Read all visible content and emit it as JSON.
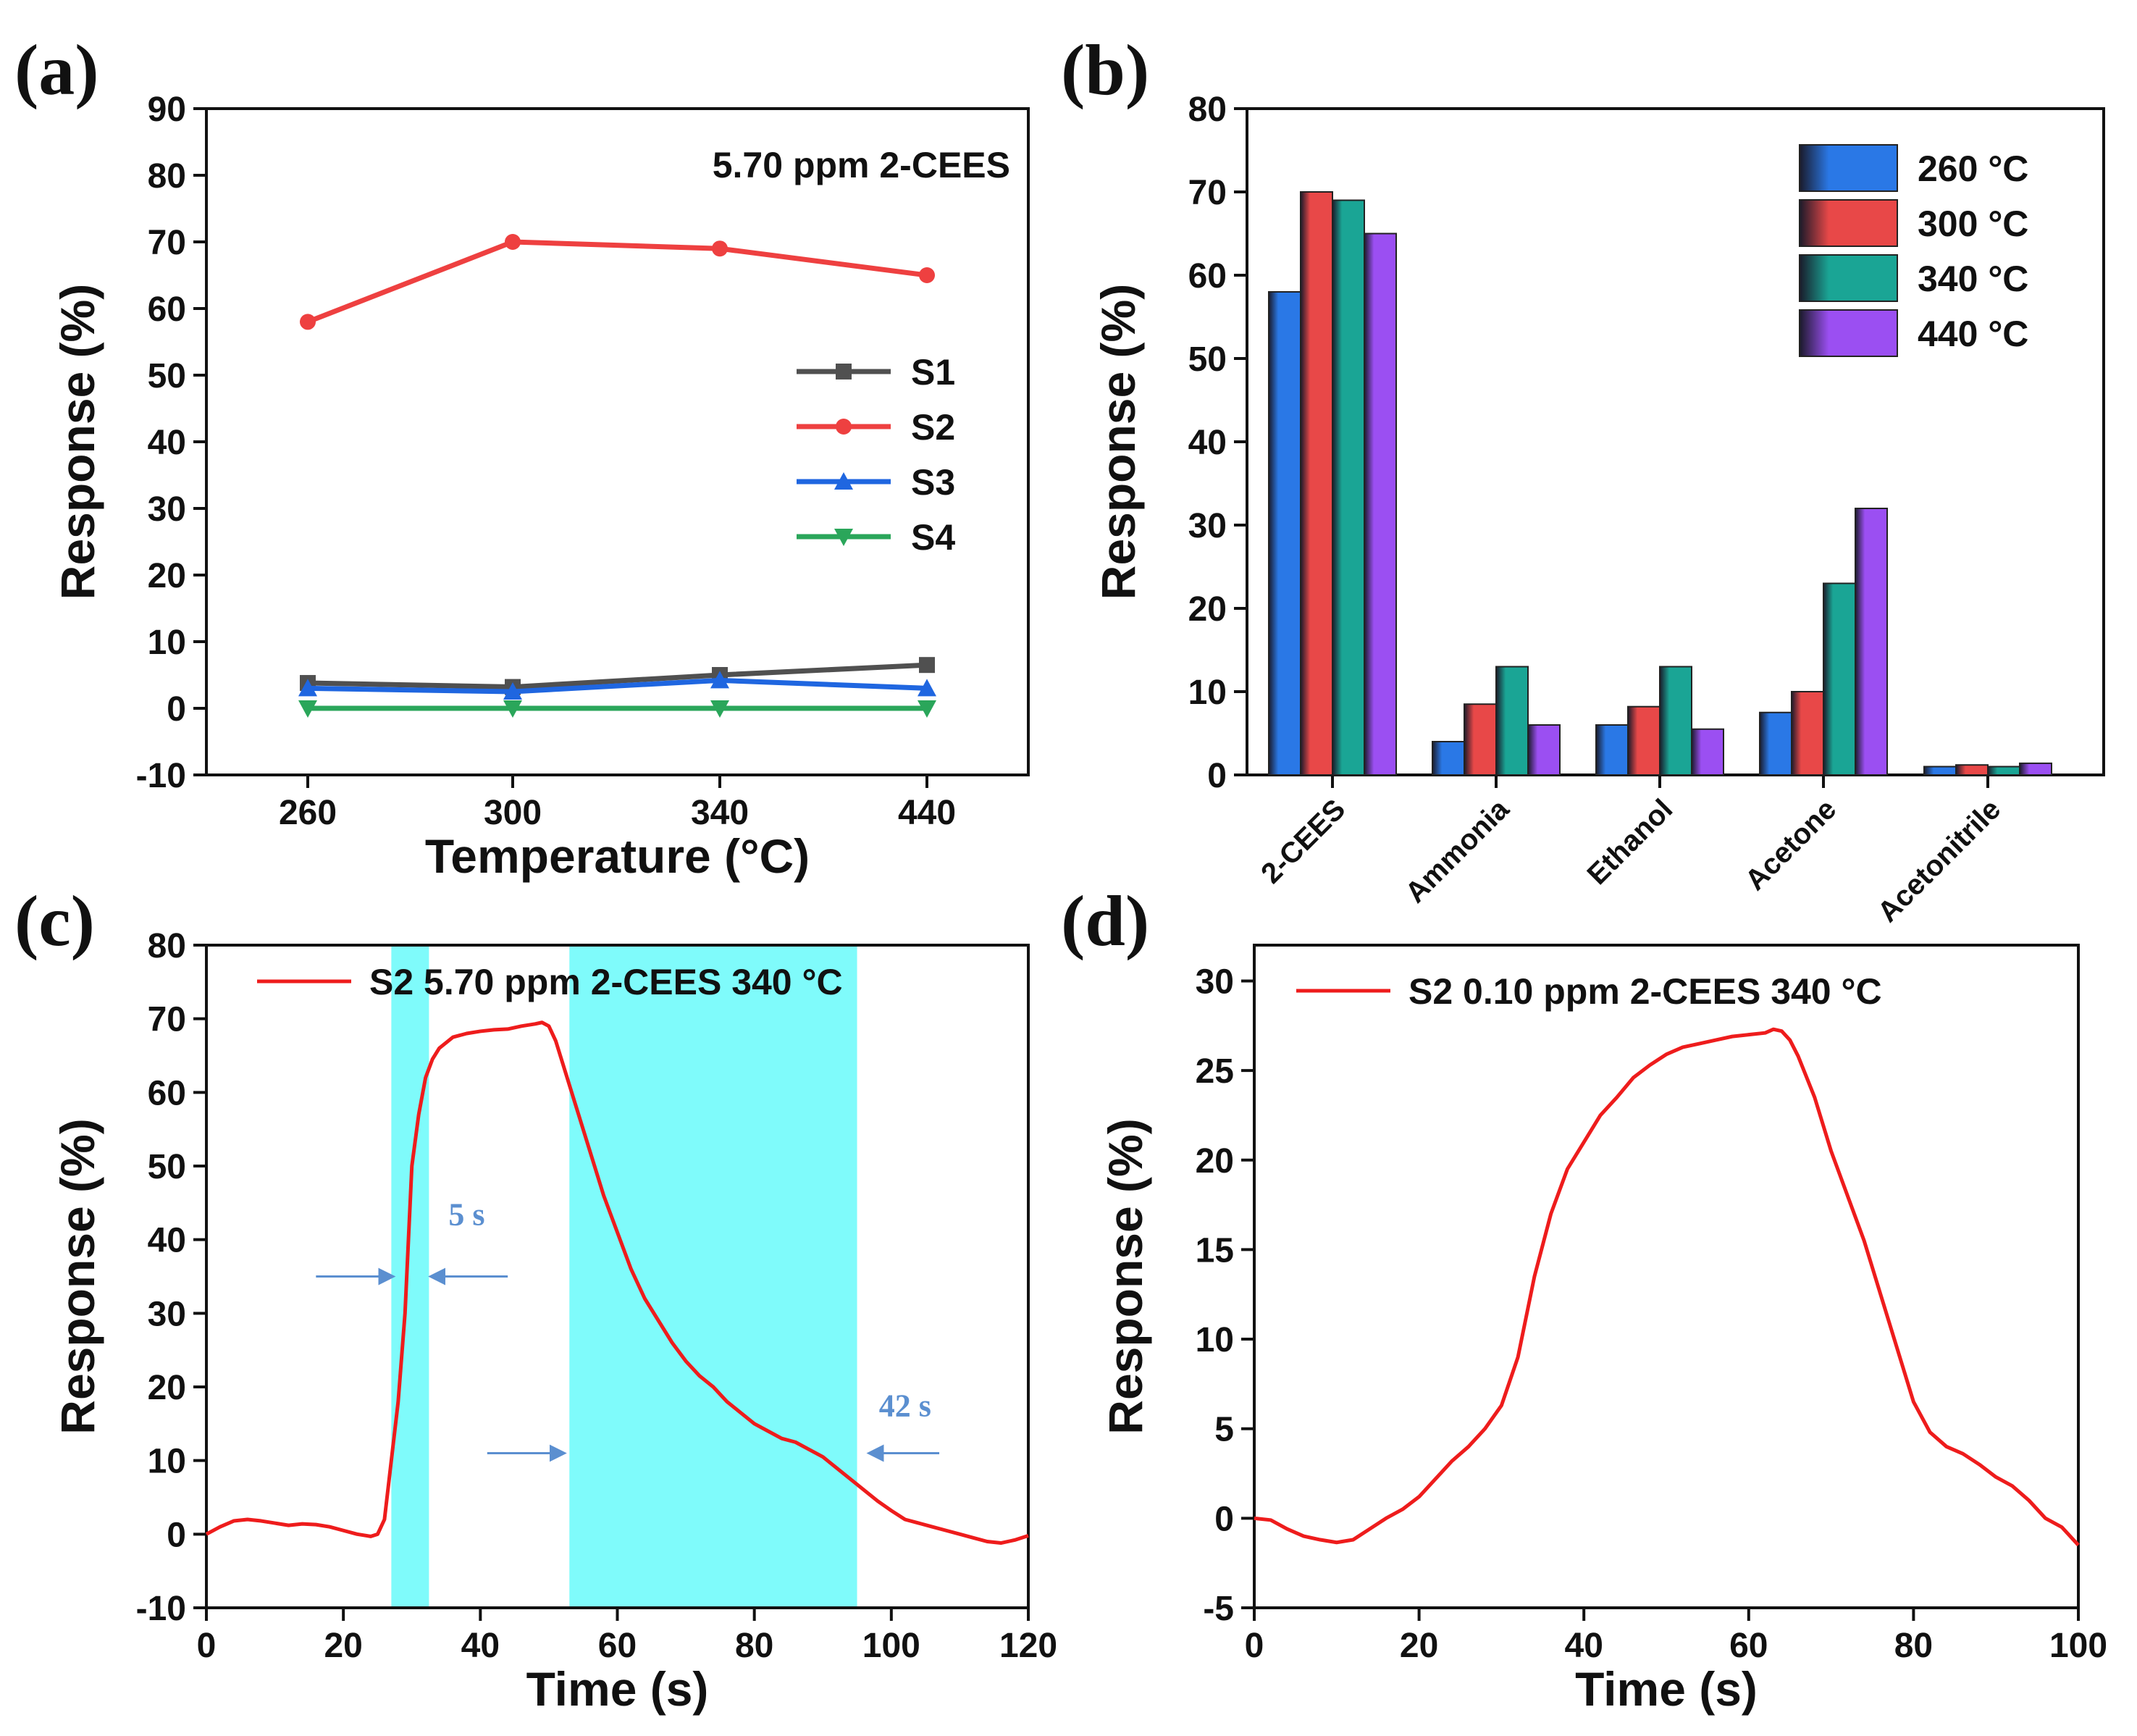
{
  "panels": {
    "a": "(a)",
    "b": "(b)",
    "c": "(c)",
    "d": "(d)"
  },
  "colors": {
    "S1": "#505050",
    "S2": "#ee4040",
    "S3": "#1f66e0",
    "S4": "#2aa65a",
    "c260": "#2a78e6",
    "c300": "#e84848",
    "c340": "#1aa595",
    "c440": "#9b4ff2",
    "shade": "#7ffbfb",
    "curve": "#ee1c1c",
    "arrow": "#5b8fd0"
  },
  "chart_data": [
    {
      "id": "a",
      "type": "line",
      "annotation": "5.70 ppm 2-CEES",
      "xlabel": "Temperature (°C)",
      "ylabel": "Response (%)",
      "categories": [
        "260",
        "300",
        "340",
        "440"
      ],
      "ylim": [
        -10,
        90
      ],
      "yticks": [
        -10,
        0,
        10,
        20,
        30,
        40,
        50,
        60,
        70,
        80,
        90
      ],
      "legend": "center-right",
      "series": [
        {
          "name": "S1",
          "values": [
            3.8,
            3.2,
            5.0,
            6.5
          ],
          "marker": "square"
        },
        {
          "name": "S2",
          "values": [
            58,
            70,
            69,
            65
          ],
          "marker": "circle"
        },
        {
          "name": "S3",
          "values": [
            3.0,
            2.5,
            4.2,
            3.0
          ],
          "marker": "triangle-up"
        },
        {
          "name": "S4",
          "values": [
            0,
            0,
            0,
            0
          ],
          "marker": "triangle-down"
        }
      ]
    },
    {
      "id": "b",
      "type": "bar",
      "xlabel": "",
      "ylabel": "Response (%)",
      "categories": [
        "2-CEES",
        "Ammonia",
        "Ethanol",
        "Acetone",
        "Acetonitrile"
      ],
      "ylim": [
        0,
        80
      ],
      "yticks": [
        0,
        10,
        20,
        30,
        40,
        50,
        60,
        70,
        80
      ],
      "legend": "top-right",
      "series": [
        {
          "name": "260 °C",
          "values": [
            58,
            4,
            6,
            7.5,
            1
          ]
        },
        {
          "name": "300 °C",
          "values": [
            70,
            8.5,
            8.2,
            10,
            1.2
          ]
        },
        {
          "name": "340 °C",
          "values": [
            69,
            13,
            13,
            23,
            1
          ]
        },
        {
          "name": "440 °C",
          "values": [
            65,
            6,
            5.5,
            32,
            1.4
          ]
        }
      ]
    },
    {
      "id": "c",
      "type": "line",
      "legend_label": "S2  5.70 ppm  2-CEES  340 °C",
      "xlabel": "Time (s)",
      "ylabel": "Response (%)",
      "xlim": [
        0,
        120
      ],
      "ylim": [
        -10,
        80
      ],
      "xticks": [
        0,
        20,
        40,
        60,
        80,
        100,
        120
      ],
      "yticks": [
        -10,
        0,
        10,
        20,
        30,
        40,
        50,
        60,
        70,
        80
      ],
      "shaded_regions": [
        [
          27,
          32.5
        ],
        [
          53,
          95
        ]
      ],
      "annotations": [
        {
          "text": "5 s",
          "x": 38,
          "y": 42
        },
        {
          "text": "42 s",
          "x": 102,
          "y": 16
        }
      ],
      "arrows": [
        {
          "from": [
            16,
            35
          ],
          "to": [
            27,
            35
          ]
        },
        {
          "from": [
            44,
            35
          ],
          "to": [
            33,
            35
          ]
        },
        {
          "from": [
            41,
            11
          ],
          "to": [
            52,
            11
          ]
        },
        {
          "from": [
            107,
            11
          ],
          "to": [
            97,
            11
          ]
        }
      ],
      "x": [
        0,
        2,
        4,
        6,
        8,
        10,
        12,
        14,
        16,
        18,
        20,
        22,
        24,
        25,
        26,
        27,
        28,
        29,
        30,
        31,
        32,
        33,
        34,
        36,
        38,
        40,
        42,
        44,
        46,
        48,
        49,
        50,
        51,
        52,
        54,
        56,
        58,
        60,
        62,
        64,
        66,
        68,
        70,
        72,
        74,
        76,
        78,
        80,
        82,
        84,
        86,
        88,
        90,
        92,
        94,
        96,
        98,
        100,
        102,
        104,
        106,
        108,
        110,
        112,
        114,
        116,
        118,
        120
      ],
      "y": [
        0,
        1,
        1.8,
        2,
        1.8,
        1.5,
        1.2,
        1.4,
        1.3,
        1.0,
        0.5,
        0,
        -0.3,
        0,
        2,
        10,
        18,
        30,
        50,
        57,
        62,
        64.5,
        66,
        67.5,
        68,
        68.3,
        68.5,
        68.6,
        69,
        69.3,
        69.5,
        69,
        67,
        64,
        58,
        52,
        46,
        41,
        36,
        32,
        29,
        26,
        23.5,
        21.5,
        20,
        18,
        16.5,
        15,
        14,
        13,
        12.5,
        11.5,
        10.5,
        9,
        7.5,
        6,
        4.5,
        3.2,
        2,
        1.5,
        1,
        0.5,
        0,
        -0.5,
        -1,
        -1.2,
        -0.8,
        -0.2
      ]
    },
    {
      "id": "d",
      "type": "line",
      "legend_label": "S2  0.10 ppm  2-CEES  340 °C",
      "xlabel": "Time (s)",
      "ylabel": "Response (%)",
      "xlim": [
        0,
        100
      ],
      "ylim": [
        -5,
        32
      ],
      "xticks": [
        0,
        20,
        40,
        60,
        80,
        100
      ],
      "yticks": [
        -5,
        0,
        5,
        10,
        15,
        20,
        25,
        30
      ],
      "x": [
        0,
        2,
        4,
        6,
        8,
        10,
        12,
        14,
        16,
        18,
        20,
        22,
        24,
        26,
        28,
        30,
        32,
        34,
        36,
        38,
        40,
        42,
        44,
        46,
        48,
        50,
        52,
        54,
        56,
        58,
        60,
        62,
        63,
        64,
        65,
        66,
        68,
        70,
        72,
        74,
        76,
        78,
        80,
        82,
        84,
        86,
        88,
        90,
        92,
        94,
        96,
        98,
        100
      ],
      "y": [
        0,
        -0.1,
        -0.6,
        -1.0,
        -1.2,
        -1.35,
        -1.2,
        -0.6,
        0,
        0.5,
        1.2,
        2.2,
        3.2,
        4.0,
        5.0,
        6.3,
        9.0,
        13.5,
        17.0,
        19.5,
        21.0,
        22.5,
        23.5,
        24.6,
        25.3,
        25.9,
        26.3,
        26.5,
        26.7,
        26.9,
        27.0,
        27.1,
        27.3,
        27.2,
        26.7,
        25.8,
        23.5,
        20.5,
        18.0,
        15.5,
        12.5,
        9.5,
        6.5,
        4.8,
        4.0,
        3.6,
        3.0,
        2.3,
        1.8,
        1.0,
        0,
        -0.5,
        -1.5
      ]
    }
  ]
}
